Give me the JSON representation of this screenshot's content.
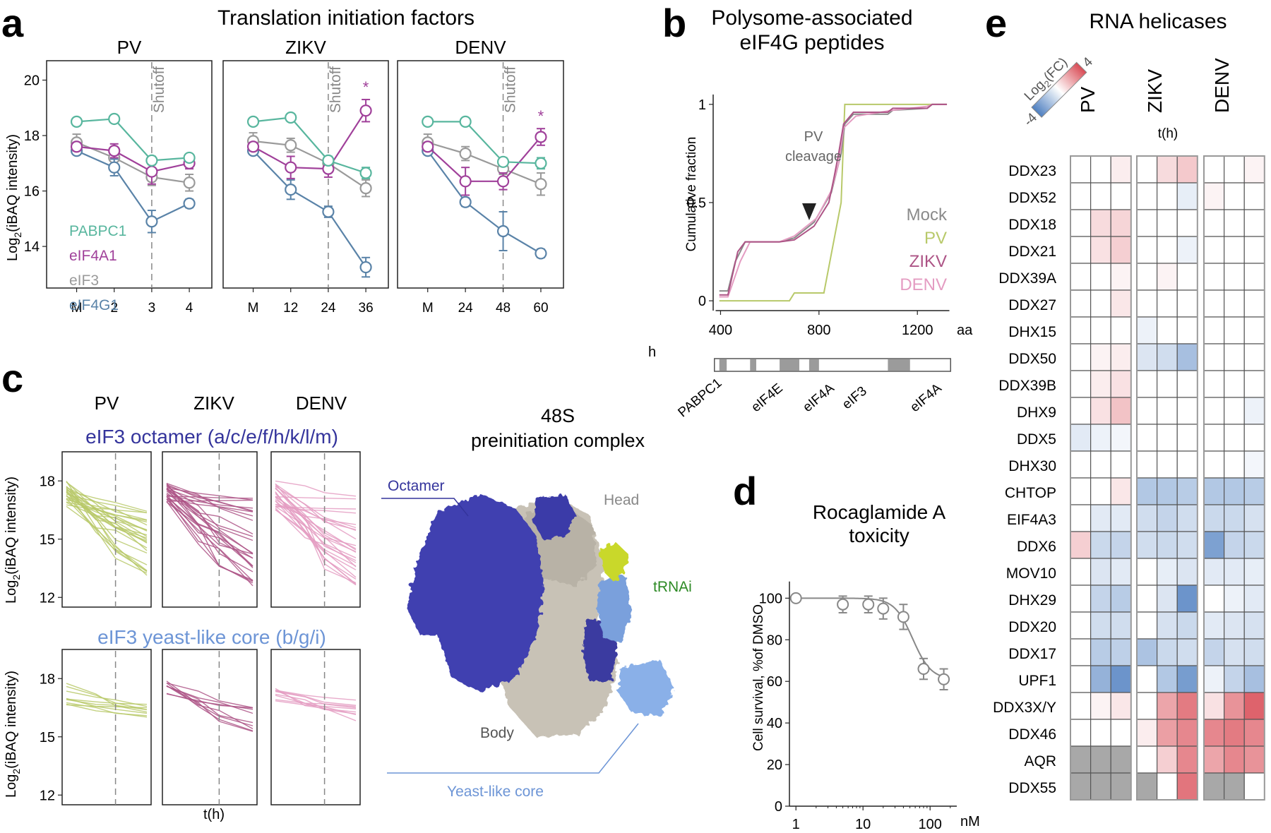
{
  "colors": {
    "pabpc1": "#58b69e",
    "eif4a1": "#a0409a",
    "eif3": "#9a9a9a",
    "eif4g1": "#5a83a8",
    "pv": "#b8c96a",
    "zikv": "#ad5486",
    "denv": "#e49cc2",
    "octamer": "#34349c",
    "core": "#6d95d6",
    "trna": "#2d8a25",
    "heat_pos": "#d94b55",
    "heat_neg": "#4e7fc0",
    "na": "#a8a8a8"
  },
  "panels": {
    "a": "a",
    "b": "b",
    "c": "c",
    "d": "d",
    "e": "e"
  },
  "panel_a": {
    "title": "Translation initiation factors",
    "ylabel_base": "Log",
    "ylabel_sub": "2",
    "ylabel_rest": "(iBAQ intensity)",
    "unit": "h",
    "shutoff": "Shutoff",
    "star": "*",
    "legend": [
      "PABPC1",
      "eIF4A1",
      "eIF3",
      "eIF4G1"
    ]
  },
  "panel_b": {
    "title_line1": "Polysome-associated",
    "title_line2": "eIF4G peptides",
    "ylabel": "Cumulative fraction",
    "annotation_line1": "PV",
    "annotation_line2": "cleavage",
    "unit": "aa",
    "domains": [
      "PABPC1",
      "eIF4E",
      "eIF4A",
      "eIF3",
      "eIF4A"
    ]
  },
  "panel_c": {
    "col_labels": [
      "PV",
      "ZIKV",
      "DENV"
    ],
    "octamer_title": "eIF3 octamer (a/c/e/f/h/k/l/m)",
    "core_title": "eIF3 yeast-like core (b/g/i)",
    "ylabel_base": "Log",
    "ylabel_sub": "2",
    "ylabel_rest": "(iBAQ intensity)",
    "xlabel": "t(h)",
    "yticks": [
      "18",
      "15",
      "12"
    ],
    "structure_title_line1": "48S",
    "structure_title_line2": "preinitiation complex",
    "labels": {
      "octamer": "Octamer",
      "head": "Head",
      "trna": "tRNAi",
      "body": "Body",
      "core": "Yeast-like core"
    }
  },
  "panel_d": {
    "title_line1": "Rocaglamide A",
    "title_line2": "toxicity",
    "ylabel": "Cell survival, %of DMSO",
    "unit": "nM"
  },
  "panel_e": {
    "title": "RNA helicases",
    "legend_base": "Log",
    "legend_sub": "2",
    "legend_rest": "(FC)",
    "legend_min": "-4",
    "legend_max": "4",
    "groups": [
      "PV",
      "ZIKV",
      "DENV"
    ],
    "time_label": "t(h)"
  },
  "chart_data": [
    {
      "id": "a-pv",
      "type": "line",
      "title": "PV",
      "xlabel": "",
      "ylabel": "Log2(iBAQ intensity)",
      "categories": [
        "M",
        "2",
        "3",
        "4"
      ],
      "ylim": [
        12.5,
        20.7
      ],
      "yticks": [
        14,
        16,
        18,
        20
      ],
      "shutoff_index": 2,
      "series": [
        {
          "name": "PABPC1",
          "values": [
            18.5,
            18.6,
            17.1,
            17.2
          ],
          "errors": [
            0,
            0,
            0.15,
            0.12
          ]
        },
        {
          "name": "eIF4A1",
          "values": [
            17.6,
            17.45,
            16.7,
            17.0
          ],
          "errors": [
            0.15,
            0.25,
            0.45,
            0.2
          ]
        },
        {
          "name": "eIF3",
          "values": [
            17.75,
            17.2,
            16.5,
            16.3
          ],
          "errors": [
            0.3,
            0.3,
            0.3,
            0.3
          ]
        },
        {
          "name": "eIF4G1",
          "values": [
            17.45,
            16.85,
            14.9,
            15.55
          ],
          "errors": [
            0.1,
            0.3,
            0.4,
            0.15
          ]
        }
      ]
    },
    {
      "id": "a-zikv",
      "type": "line",
      "title": "ZIKV",
      "categories": [
        "M",
        "12",
        "24",
        "36"
      ],
      "ylim": [
        12.5,
        20.7
      ],
      "shutoff_index": 2,
      "star_index": 3,
      "series": [
        {
          "name": "PABPC1",
          "values": [
            18.5,
            18.65,
            17.1,
            16.65
          ],
          "errors": [
            0,
            0,
            0.15,
            0.2
          ]
        },
        {
          "name": "eIF4A1",
          "values": [
            17.6,
            16.85,
            16.8,
            18.9
          ],
          "errors": [
            0.15,
            0.4,
            0.3,
            0.4
          ]
        },
        {
          "name": "eIF3",
          "values": [
            17.8,
            17.65,
            17.0,
            16.1
          ],
          "errors": [
            0.3,
            0.25,
            0.2,
            0.3
          ]
        },
        {
          "name": "eIF4G1",
          "values": [
            17.45,
            16.05,
            15.25,
            13.25
          ],
          "errors": [
            0.1,
            0.35,
            0.2,
            0.35
          ]
        }
      ]
    },
    {
      "id": "a-denv",
      "type": "line",
      "title": "DENV",
      "categories": [
        "M",
        "24",
        "48",
        "60"
      ],
      "ylim": [
        12.5,
        20.7
      ],
      "shutoff_index": 2,
      "star_index": 3,
      "series": [
        {
          "name": "PABPC1",
          "values": [
            18.5,
            18.5,
            17.05,
            17.0
          ],
          "errors": [
            0,
            0,
            0.15,
            0.2
          ]
        },
        {
          "name": "eIF4A1",
          "values": [
            17.6,
            16.35,
            16.35,
            17.95
          ],
          "errors": [
            0.15,
            0.5,
            0.3,
            0.3
          ]
        },
        {
          "name": "eIF3",
          "values": [
            17.75,
            17.35,
            16.8,
            16.25
          ],
          "errors": [
            0.3,
            0.25,
            0.2,
            0.4
          ]
        },
        {
          "name": "eIF4G1",
          "values": [
            17.45,
            15.6,
            14.55,
            13.75
          ],
          "errors": [
            0.1,
            0.15,
            0.7,
            0.15
          ]
        }
      ]
    },
    {
      "id": "b",
      "type": "line",
      "xlabel": "aa",
      "ylabel": "Cumulative fraction",
      "xlim": [
        370,
        1340
      ],
      "ylim": [
        -0.05,
        1.1
      ],
      "xticks": [
        400,
        800,
        1200
      ],
      "yticks": [
        0,
        0.5,
        1
      ],
      "yticklabels": [
        "0",
        "0.5",
        "1"
      ],
      "series": [
        {
          "name": "Mock",
          "values": [
            [
              395,
              0.05
            ],
            [
              430,
              0.05
            ],
            [
              460,
              0.2
            ],
            [
              500,
              0.3
            ],
            [
              640,
              0.3
            ],
            [
              700,
              0.32
            ],
            [
              780,
              0.4
            ],
            [
              850,
              0.55
            ],
            [
              870,
              0.65
            ],
            [
              890,
              0.75
            ],
            [
              905,
              0.9
            ],
            [
              940,
              0.95
            ],
            [
              1080,
              0.95
            ],
            [
              1100,
              0.97
            ],
            [
              1240,
              0.98
            ],
            [
              1260,
              1
            ],
            [
              1320,
              1
            ]
          ]
        },
        {
          "name": "PV",
          "values": [
            [
              395,
              0
            ],
            [
              680,
              0
            ],
            [
              700,
              0.04
            ],
            [
              820,
              0.04
            ],
            [
              890,
              0.5
            ],
            [
              905,
              1
            ],
            [
              1320,
              1
            ]
          ]
        },
        {
          "name": "ZIKV",
          "values": [
            [
              395,
              0.03
            ],
            [
              430,
              0.03
            ],
            [
              470,
              0.25
            ],
            [
              500,
              0.3
            ],
            [
              640,
              0.3
            ],
            [
              700,
              0.31
            ],
            [
              780,
              0.38
            ],
            [
              840,
              0.5
            ],
            [
              860,
              0.62
            ],
            [
              880,
              0.75
            ],
            [
              900,
              0.9
            ],
            [
              940,
              0.96
            ],
            [
              1080,
              0.96
            ],
            [
              1100,
              0.98
            ],
            [
              1240,
              0.98
            ],
            [
              1260,
              1
            ],
            [
              1320,
              1
            ]
          ]
        },
        {
          "name": "DENV",
          "values": [
            [
              395,
              0.02
            ],
            [
              430,
              0.02
            ],
            [
              480,
              0.2
            ],
            [
              520,
              0.3
            ],
            [
              640,
              0.3
            ],
            [
              700,
              0.33
            ],
            [
              790,
              0.42
            ],
            [
              850,
              0.56
            ],
            [
              880,
              0.7
            ],
            [
              900,
              0.88
            ],
            [
              950,
              0.94
            ],
            [
              1100,
              0.97
            ],
            [
              1240,
              0.99
            ],
            [
              1260,
              1
            ],
            [
              1320,
              1
            ]
          ]
        }
      ],
      "domains": [
        {
          "name": "PABPC1",
          "range": [
            395,
            425
          ]
        },
        {
          "name": "eIF4E",
          "range": [
            520,
            545
          ]
        },
        {
          "name": "eIF4A",
          "range": [
            640,
            720
          ]
        },
        {
          "name": "eIF3",
          "range": [
            760,
            800
          ]
        },
        {
          "name": "eIF4A",
          "range": [
            1080,
            1170
          ]
        }
      ],
      "annotation_x": 680
    },
    {
      "id": "c-octamer",
      "type": "line",
      "title": "eIF3 octamer (a/c/e/f/h/k/l/m)",
      "xlabel": "t(h)",
      "ylim": [
        11.5,
        19.5
      ],
      "yticks": [
        12,
        15,
        18
      ],
      "panels": [
        {
          "name": "PV",
          "start_range": [
            16.6,
            18.0
          ],
          "end_range": [
            13.0,
            16.8
          ]
        },
        {
          "name": "ZIKV",
          "start_range": [
            16.9,
            17.9
          ],
          "end_range": [
            12.4,
            17.2
          ]
        },
        {
          "name": "DENV",
          "start_range": [
            16.5,
            18.0
          ],
          "end_range": [
            12.6,
            17.4
          ]
        }
      ]
    },
    {
      "id": "c-core",
      "type": "line",
      "title": "eIF3 yeast-like core (b/g/i)",
      "xlabel": "t(h)",
      "ylim": [
        11.5,
        19.5
      ],
      "yticks": [
        12,
        15,
        18
      ],
      "panels": [
        {
          "name": "PV",
          "start_range": [
            16.6,
            17.8
          ],
          "end_range": [
            16.0,
            16.8
          ]
        },
        {
          "name": "ZIKV",
          "start_range": [
            17.2,
            17.9
          ],
          "end_range": [
            15.2,
            16.8
          ]
        },
        {
          "name": "DENV",
          "start_range": [
            16.8,
            17.5
          ],
          "end_range": [
            15.8,
            16.9
          ]
        }
      ]
    },
    {
      "id": "d",
      "type": "line",
      "title": "Rocaglamide A toxicity",
      "ylabel": "Cell survival, %of DMSO",
      "xlabel": "nM",
      "xscale": "log",
      "xlim": [
        0.8,
        250
      ],
      "ylim": [
        0,
        112
      ],
      "yticks": [
        0,
        20,
        40,
        60,
        80,
        100
      ],
      "xticks": [
        1,
        10,
        100
      ],
      "xticklabels": [
        "1",
        "10",
        "100"
      ],
      "x": [
        1,
        5,
        12,
        20,
        40,
        80,
        160
      ],
      "values": [
        100,
        97,
        97,
        95,
        91,
        66,
        61
      ],
      "errors": [
        0,
        4,
        4,
        5,
        6,
        5,
        5
      ]
    },
    {
      "id": "e",
      "type": "heatmap",
      "title": "RNA helicases",
      "groups": [
        "PV",
        "ZIKV",
        "DENV"
      ],
      "vmin": -4,
      "vmax": 4,
      "rows": [
        "DDX23",
        "DDX52",
        "DDX18",
        "DDX21",
        "DDX39A",
        "DDX27",
        "DHX15",
        "DDX50",
        "DDX39B",
        "DHX9",
        "DDX5",
        "DHX30",
        "CHTOP",
        "EIF4A3",
        "DDX6",
        "MOV10",
        "DHX29",
        "DDX20",
        "DDX17",
        "UPF1",
        "DDX3X/Y",
        "DDX46",
        "AQR",
        "DDX55"
      ],
      "values": [
        [
          0,
          0,
          0.3,
          0,
          0.6,
          0.9,
          0,
          0,
          0.2
        ],
        [
          0,
          0,
          0,
          0,
          0,
          -0.4,
          0.2,
          0,
          0
        ],
        [
          0,
          0.6,
          0.7,
          0,
          0,
          0,
          0,
          0,
          0
        ],
        [
          0,
          0.5,
          0.8,
          0,
          0,
          -0.3,
          0,
          0,
          0
        ],
        [
          0,
          0,
          0.2,
          0,
          0.2,
          0,
          0,
          0,
          0
        ],
        [
          0,
          0,
          0.4,
          0,
          0,
          0,
          0,
          0,
          0
        ],
        [
          0,
          0,
          0,
          -0.3,
          0,
          0,
          0,
          0,
          0
        ],
        [
          0,
          0.2,
          0.3,
          -0.6,
          -0.8,
          -1.5,
          0,
          0,
          0
        ],
        [
          0,
          0.3,
          0.5,
          0,
          0,
          0,
          0,
          0,
          0
        ],
        [
          0,
          0.5,
          1.0,
          0,
          0,
          0,
          0,
          0,
          -0.3
        ],
        [
          -0.5,
          -0.3,
          -0.2,
          0,
          0,
          0,
          0,
          0,
          0
        ],
        [
          0,
          0,
          0,
          0,
          0,
          0,
          0,
          0,
          -0.2
        ],
        [
          0,
          0,
          0.4,
          -1.3,
          -1.3,
          -1.2,
          -1.3,
          -1.3,
          -1.2
        ],
        [
          0,
          -0.5,
          -0.5,
          -0.8,
          -1.0,
          -0.8,
          -0.9,
          -0.9,
          -0.7
        ],
        [
          0.8,
          -0.9,
          -1.0,
          -0.8,
          -0.9,
          -0.8,
          -2.2,
          -1.0,
          -0.9
        ],
        [
          0,
          -0.6,
          -0.5,
          0,
          -0.4,
          -0.6,
          -0.5,
          -0.5,
          -0.4
        ],
        [
          0,
          -1.0,
          -1.2,
          0,
          -0.6,
          -2.5,
          0,
          -0.3,
          -0.5
        ],
        [
          0,
          -0.8,
          -0.8,
          0,
          -0.7,
          -0.9,
          -0.5,
          -0.6,
          -0.7
        ],
        [
          0,
          -1.2,
          -1.1,
          -1.4,
          -0.9,
          -0.8,
          -1.0,
          -0.7,
          -0.8
        ],
        [
          0,
          -1.8,
          -2.5,
          0,
          -1.3,
          -2.3,
          -0.3,
          -1.0,
          -1.5
        ],
        [
          0,
          0.2,
          0.4,
          0,
          1.5,
          2.2,
          0.5,
          1.8,
          2.6
        ],
        [
          0,
          0,
          0,
          0.3,
          1.6,
          2.0,
          2.0,
          2.2,
          2.0
        ],
        [
          null,
          null,
          null,
          0,
          0.8,
          2.0,
          1.5,
          2.0,
          1.8
        ],
        [
          null,
          null,
          null,
          null,
          0,
          2.3,
          null,
          null,
          0
        ]
      ]
    }
  ]
}
